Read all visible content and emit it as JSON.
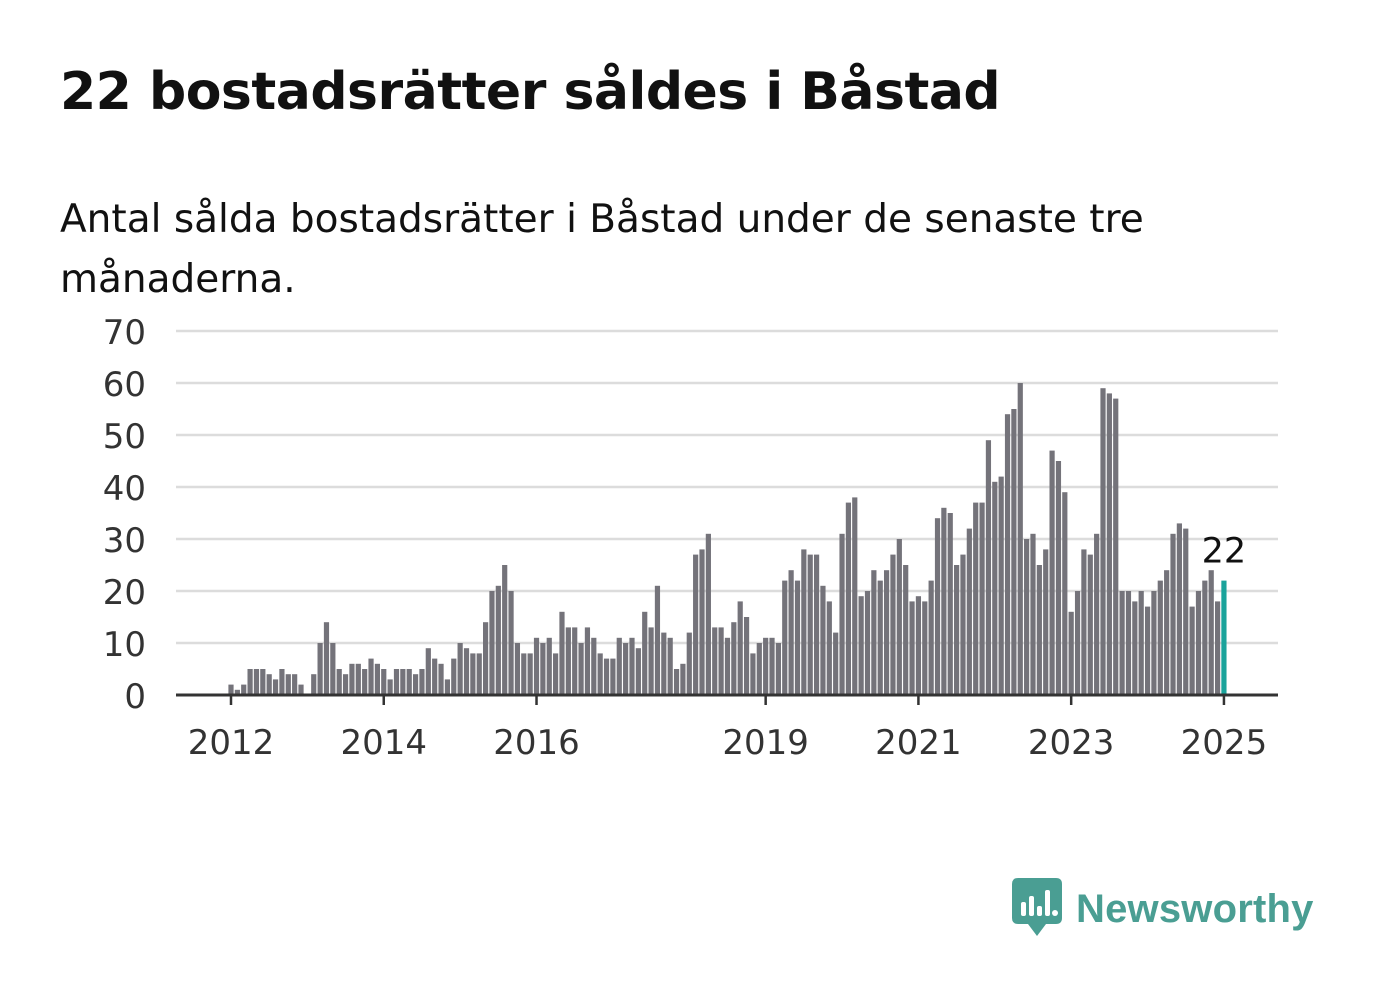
{
  "title": "22 bostadsrätter såldes i Båstad",
  "subtitle": "Antal sålda bostadsrätter i Båstad under de senaste tre månaderna.",
  "brand": {
    "name": "Newsworthy",
    "color": "#4a9e93"
  },
  "chart_data": {
    "type": "bar",
    "title": "22 bostadsrätter såldes i Båstad",
    "subtitle": "Antal sålda bostadsrätter i Båstad under de senaste tre månaderna.",
    "xlabel": "",
    "ylabel": "",
    "ylim": [
      0,
      70
    ],
    "yticks": [
      0,
      10,
      20,
      30,
      40,
      50,
      60,
      70
    ],
    "x_start": "2012-01",
    "x_end": "2025-01",
    "xtick_labels": [
      "2012",
      "2014",
      "2016",
      "2019",
      "2021",
      "2023",
      "2025"
    ],
    "grid": true,
    "bar_color": "#74737a",
    "highlight_color": "#1aa39b",
    "highlight_label": "22",
    "values": [
      2,
      1,
      2,
      5,
      5,
      5,
      4,
      3,
      5,
      4,
      4,
      2,
      0,
      4,
      10,
      14,
      10,
      5,
      4,
      6,
      6,
      5,
      7,
      6,
      5,
      3,
      5,
      5,
      5,
      4,
      5,
      9,
      7,
      6,
      3,
      7,
      10,
      9,
      8,
      8,
      14,
      20,
      21,
      25,
      20,
      10,
      8,
      8,
      11,
      10,
      11,
      8,
      16,
      13,
      13,
      10,
      13,
      11,
      8,
      7,
      7,
      11,
      10,
      11,
      9,
      16,
      13,
      21,
      12,
      11,
      5,
      6,
      12,
      27,
      28,
      31,
      13,
      13,
      11,
      14,
      18,
      15,
      8,
      10,
      11,
      11,
      10,
      22,
      24,
      22,
      28,
      27,
      27,
      21,
      18,
      12,
      31,
      37,
      38,
      19,
      20,
      24,
      22,
      24,
      27,
      30,
      25,
      18,
      19,
      18,
      22,
      34,
      36,
      35,
      25,
      27,
      32,
      37,
      37,
      49,
      41,
      42,
      54,
      55,
      60,
      30,
      31,
      25,
      28,
      47,
      45,
      39,
      16,
      20,
      28,
      27,
      31,
      59,
      58,
      57,
      20,
      20,
      18,
      20,
      17,
      20,
      22,
      24,
      31,
      33,
      32,
      17,
      20,
      22,
      24,
      18,
      22
    ]
  }
}
